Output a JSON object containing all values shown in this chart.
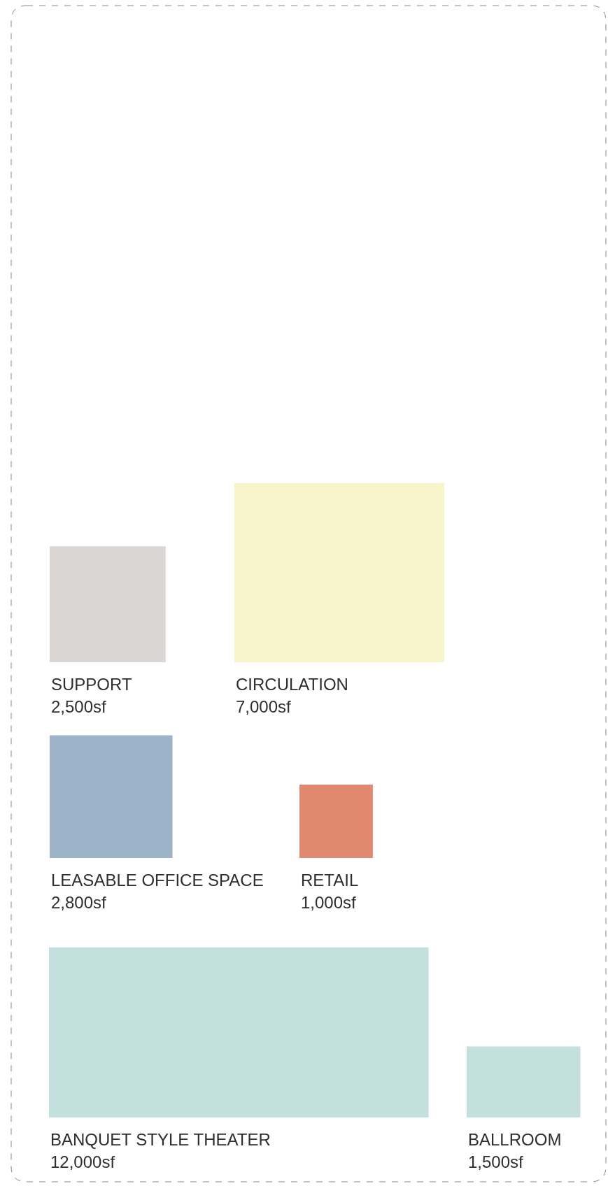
{
  "chart_data": {
    "type": "other",
    "categories": [
      "SUPPORT",
      "CIRCULATION",
      "LEASABLE OFFICE SPACE",
      "RETAIL",
      "BANQUET STYLE THEATER",
      "BALLROOM"
    ],
    "values": [
      2500,
      7000,
      2800,
      1000,
      12000,
      1500
    ],
    "value_labels": [
      "2,500sf",
      "7,000sf",
      "2,800sf",
      "1,000sf",
      "12,000sf",
      "1,500sf"
    ],
    "colors": [
      "#dad6d3",
      "#f8f5cc",
      "#9db4c8",
      "#e08870",
      "#c3e0df",
      "#c3e0df"
    ]
  }
}
